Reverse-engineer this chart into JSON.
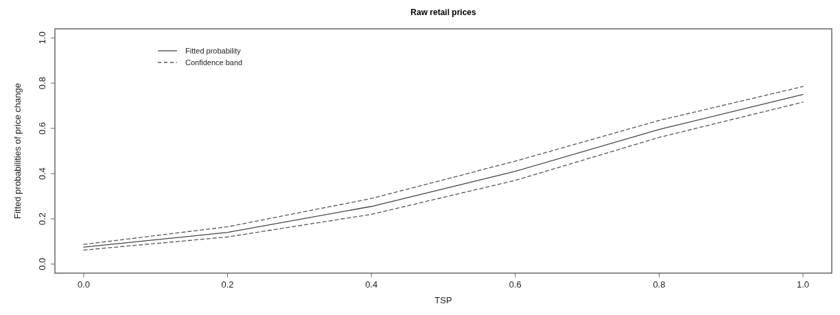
{
  "chart_data": {
    "type": "line",
    "title": "Raw retail prices",
    "xlabel": "TSP",
    "ylabel": "Fitted probabilities of price change",
    "x": [
      0,
      0.2,
      0.4,
      0.6,
      0.8,
      1.0
    ],
    "series": [
      {
        "name": "Fitted probability",
        "color": "#444444",
        "line_style": "solid",
        "values": [
          0.075,
          0.14,
          0.255,
          0.41,
          0.595,
          0.75
        ]
      },
      {
        "name": "Confidence band",
        "color": "#555555",
        "line_style": "dashed",
        "values": [
          0.087,
          0.165,
          0.29,
          0.455,
          0.635,
          0.785
        ]
      },
      {
        "color": "#555555",
        "line_style": "dashed",
        "values": [
          0.062,
          0.12,
          0.22,
          0.37,
          0.56,
          0.716
        ]
      }
    ],
    "xlim": [
      -0.04,
      1.04
    ],
    "ylim": [
      -0.04,
      1.04
    ],
    "xticks": [
      {
        "value": 0,
        "label": "0.0"
      },
      0.2,
      0.4,
      0.6,
      0.8,
      {
        "value": 1,
        "label": "1.0"
      }
    ],
    "yticks": [
      {
        "value": 0,
        "label": "0.0"
      },
      0.2,
      0.4,
      0.6,
      0.8,
      {
        "value": 1,
        "label": "1.0"
      }
    ],
    "legend": "top left",
    "grid": false,
    "marker": "none"
  }
}
